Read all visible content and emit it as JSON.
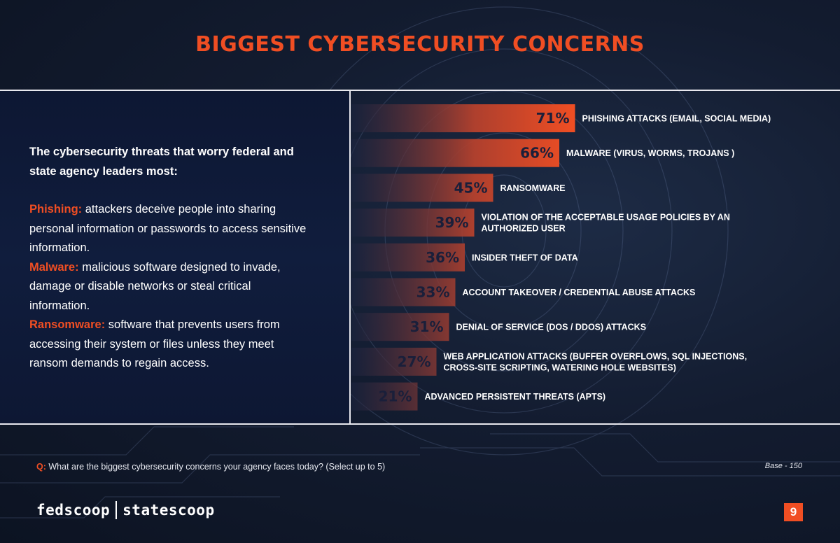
{
  "title": "BIGGEST CYBERSECURITY CONCERNS",
  "intro": "The cybersecurity threats that worry federal and state agency leaders most:",
  "definitions": [
    {
      "term": "Phishing:",
      "text": " attackers deceive people into sharing personal information or passwords to access sensitive information."
    },
    {
      "term": "Malware:",
      "text": " malicious software designed to invade, damage or disable networks or steal critical information."
    },
    {
      "term": "Ransomware:",
      "text": " software that prevents users from accessing their system or files unless they meet ransom demands to regain access."
    }
  ],
  "chart_data": {
    "type": "bar",
    "orientation": "horizontal",
    "unit": "%",
    "categories": [
      [
        "PHISHING ATTACKS (EMAIL, SOCIAL MEDIA)"
      ],
      [
        "MALWARE (VIRUS, WORMS, TROJANS )"
      ],
      [
        "RANSOMWARE"
      ],
      [
        "VIOLATION OF THE ACCEPTABLE USAGE POLICIES BY AN",
        "AUTHORIZED USER"
      ],
      [
        "INSIDER THEFT OF DATA"
      ],
      [
        "ACCOUNT TAKEOVER / CREDENTIAL ABUSE ATTACKS"
      ],
      [
        "DENIAL OF SERVICE (DOS / DDOS) ATTACKS"
      ],
      [
        "WEB APPLICATION ATTACKS (BUFFER OVERFLOWS, SQL INJECTIONS,",
        "CROSS-SITE SCRIPTING, WATERING HOLE WEBSITES)"
      ],
      [
        "ADVANCED PERSISTENT THREATS (APTS)"
      ]
    ],
    "values": [
      71,
      66,
      45,
      39,
      36,
      33,
      31,
      27,
      21
    ],
    "value_labels": [
      "71%",
      "66%",
      "45%",
      "39%",
      "36%",
      "33%",
      "31%",
      "27%",
      "21%"
    ],
    "xlim": [
      0,
      100
    ],
    "grid": false,
    "legend": "none",
    "colors": {
      "bar_start": "#1a2440",
      "bar_end": "#f04e23",
      "value_text": "#1a1f3a"
    }
  },
  "footer": {
    "question_prefix": "Q:",
    "question": "What are the biggest cybersecurity concerns your agency faces today? (Select up to 5)",
    "base": "Base - 150",
    "logo_left": "fedscoop",
    "logo_right": "statescoop",
    "page_number": "9"
  },
  "colors": {
    "accent": "#f04e23",
    "background": "#131c30",
    "panel": "#0d1733"
  }
}
